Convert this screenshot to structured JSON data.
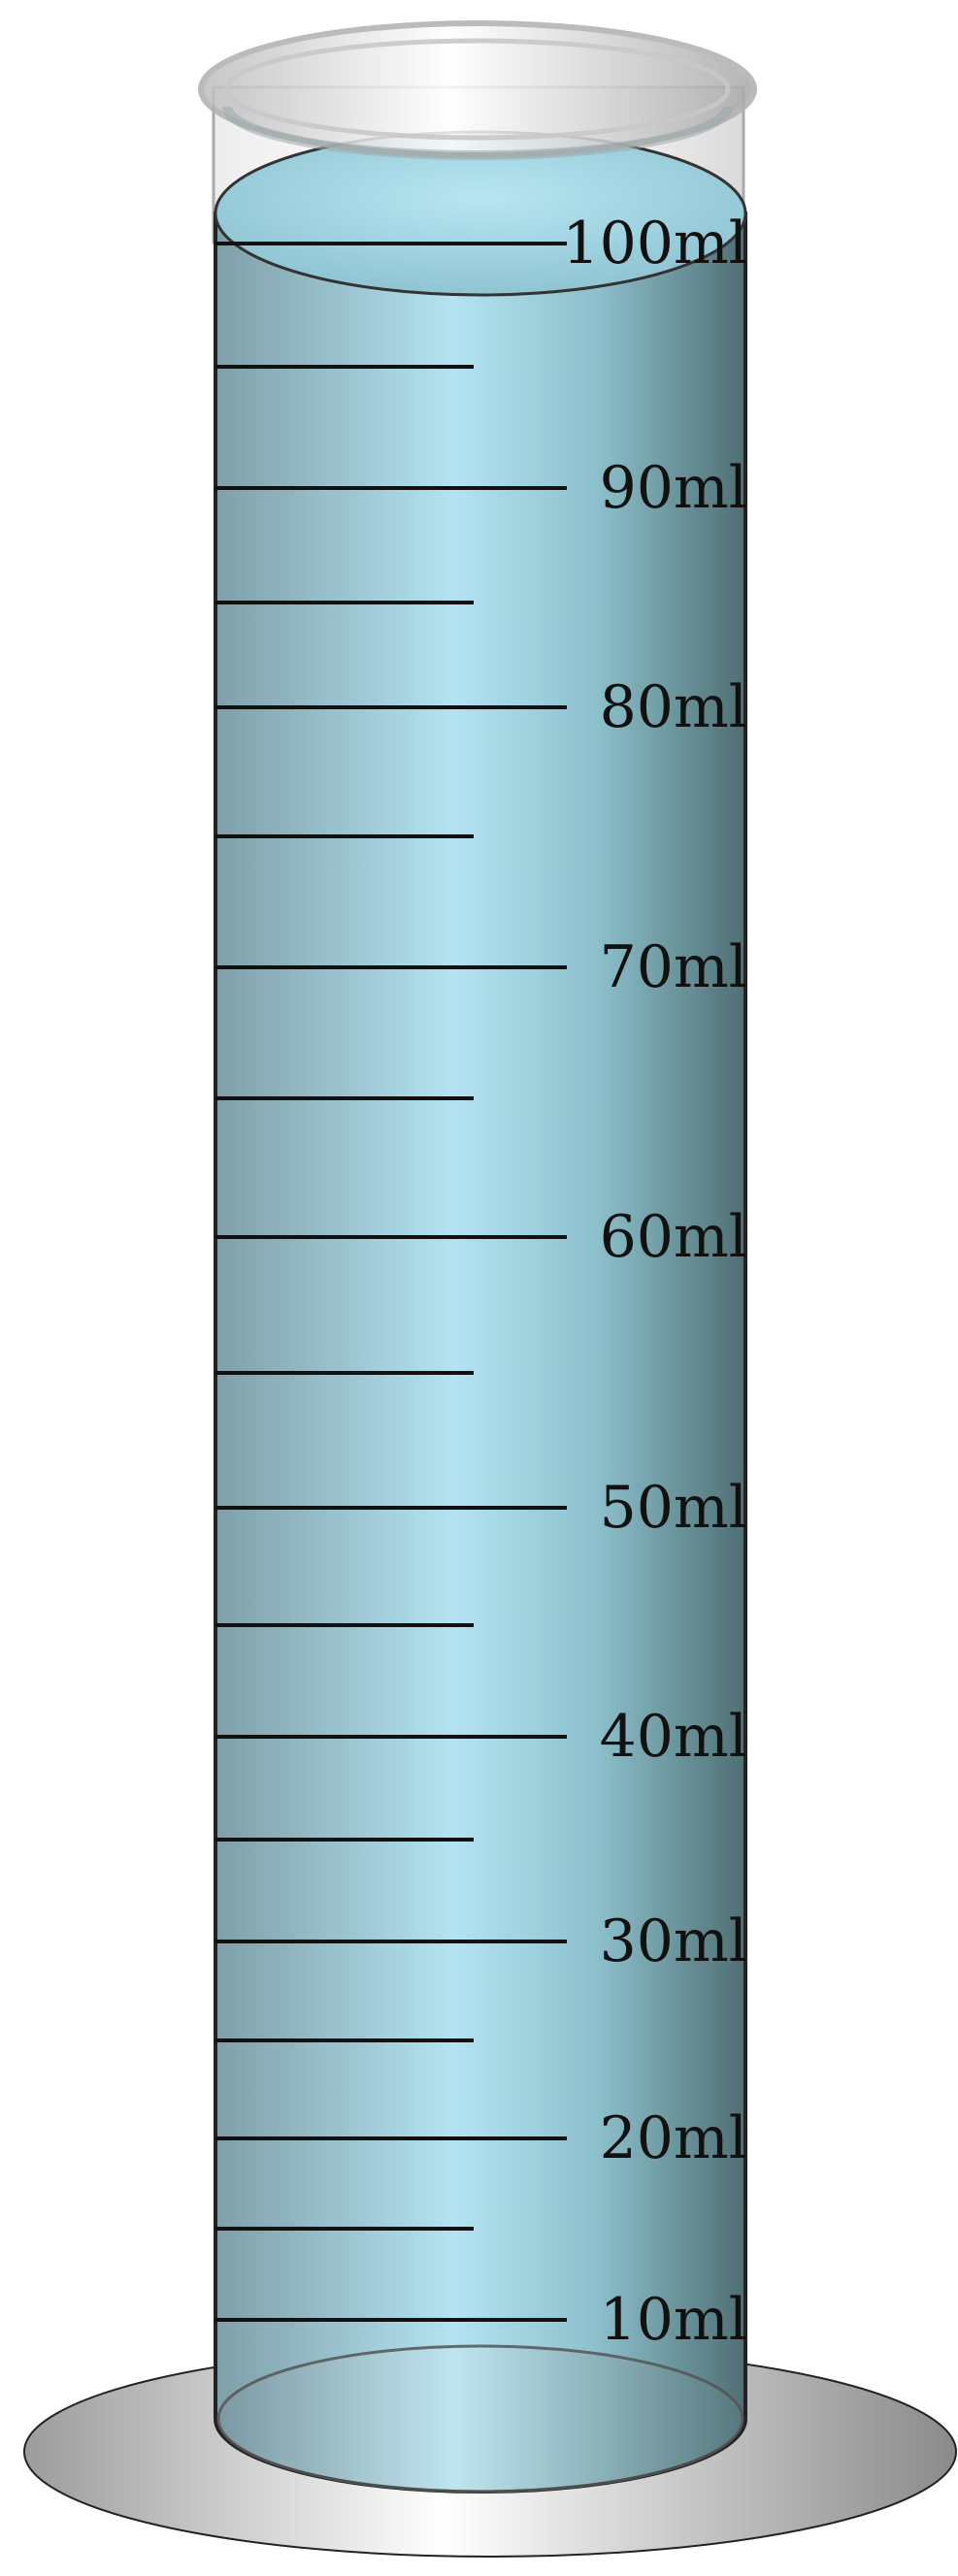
{
  "diagram": {
    "object": "graduated cylinder",
    "unit": "ml",
    "liquid_level_ml": 100,
    "colors": {
      "liquid_light": "#b4e3f1",
      "liquid_dark": "#4f6f73",
      "glass": "#cfcfcf",
      "base_light": "#ffffff",
      "base_dark": "#8f8f8f",
      "scale_lines": "#111111"
    },
    "major_marks": [
      {
        "value": 100,
        "label": "100ml"
      },
      {
        "value": 90,
        "label": "90ml"
      },
      {
        "value": 80,
        "label": "80ml"
      },
      {
        "value": 70,
        "label": "70ml"
      },
      {
        "value": 60,
        "label": "60ml"
      },
      {
        "value": 50,
        "label": "50ml"
      },
      {
        "value": 40,
        "label": "40ml"
      },
      {
        "value": 30,
        "label": "30ml"
      },
      {
        "value": 20,
        "label": "20ml"
      },
      {
        "value": 10,
        "label": "10ml"
      }
    ],
    "minor_marks": [
      95,
      85,
      75,
      65,
      55,
      45,
      35,
      25,
      15
    ]
  }
}
